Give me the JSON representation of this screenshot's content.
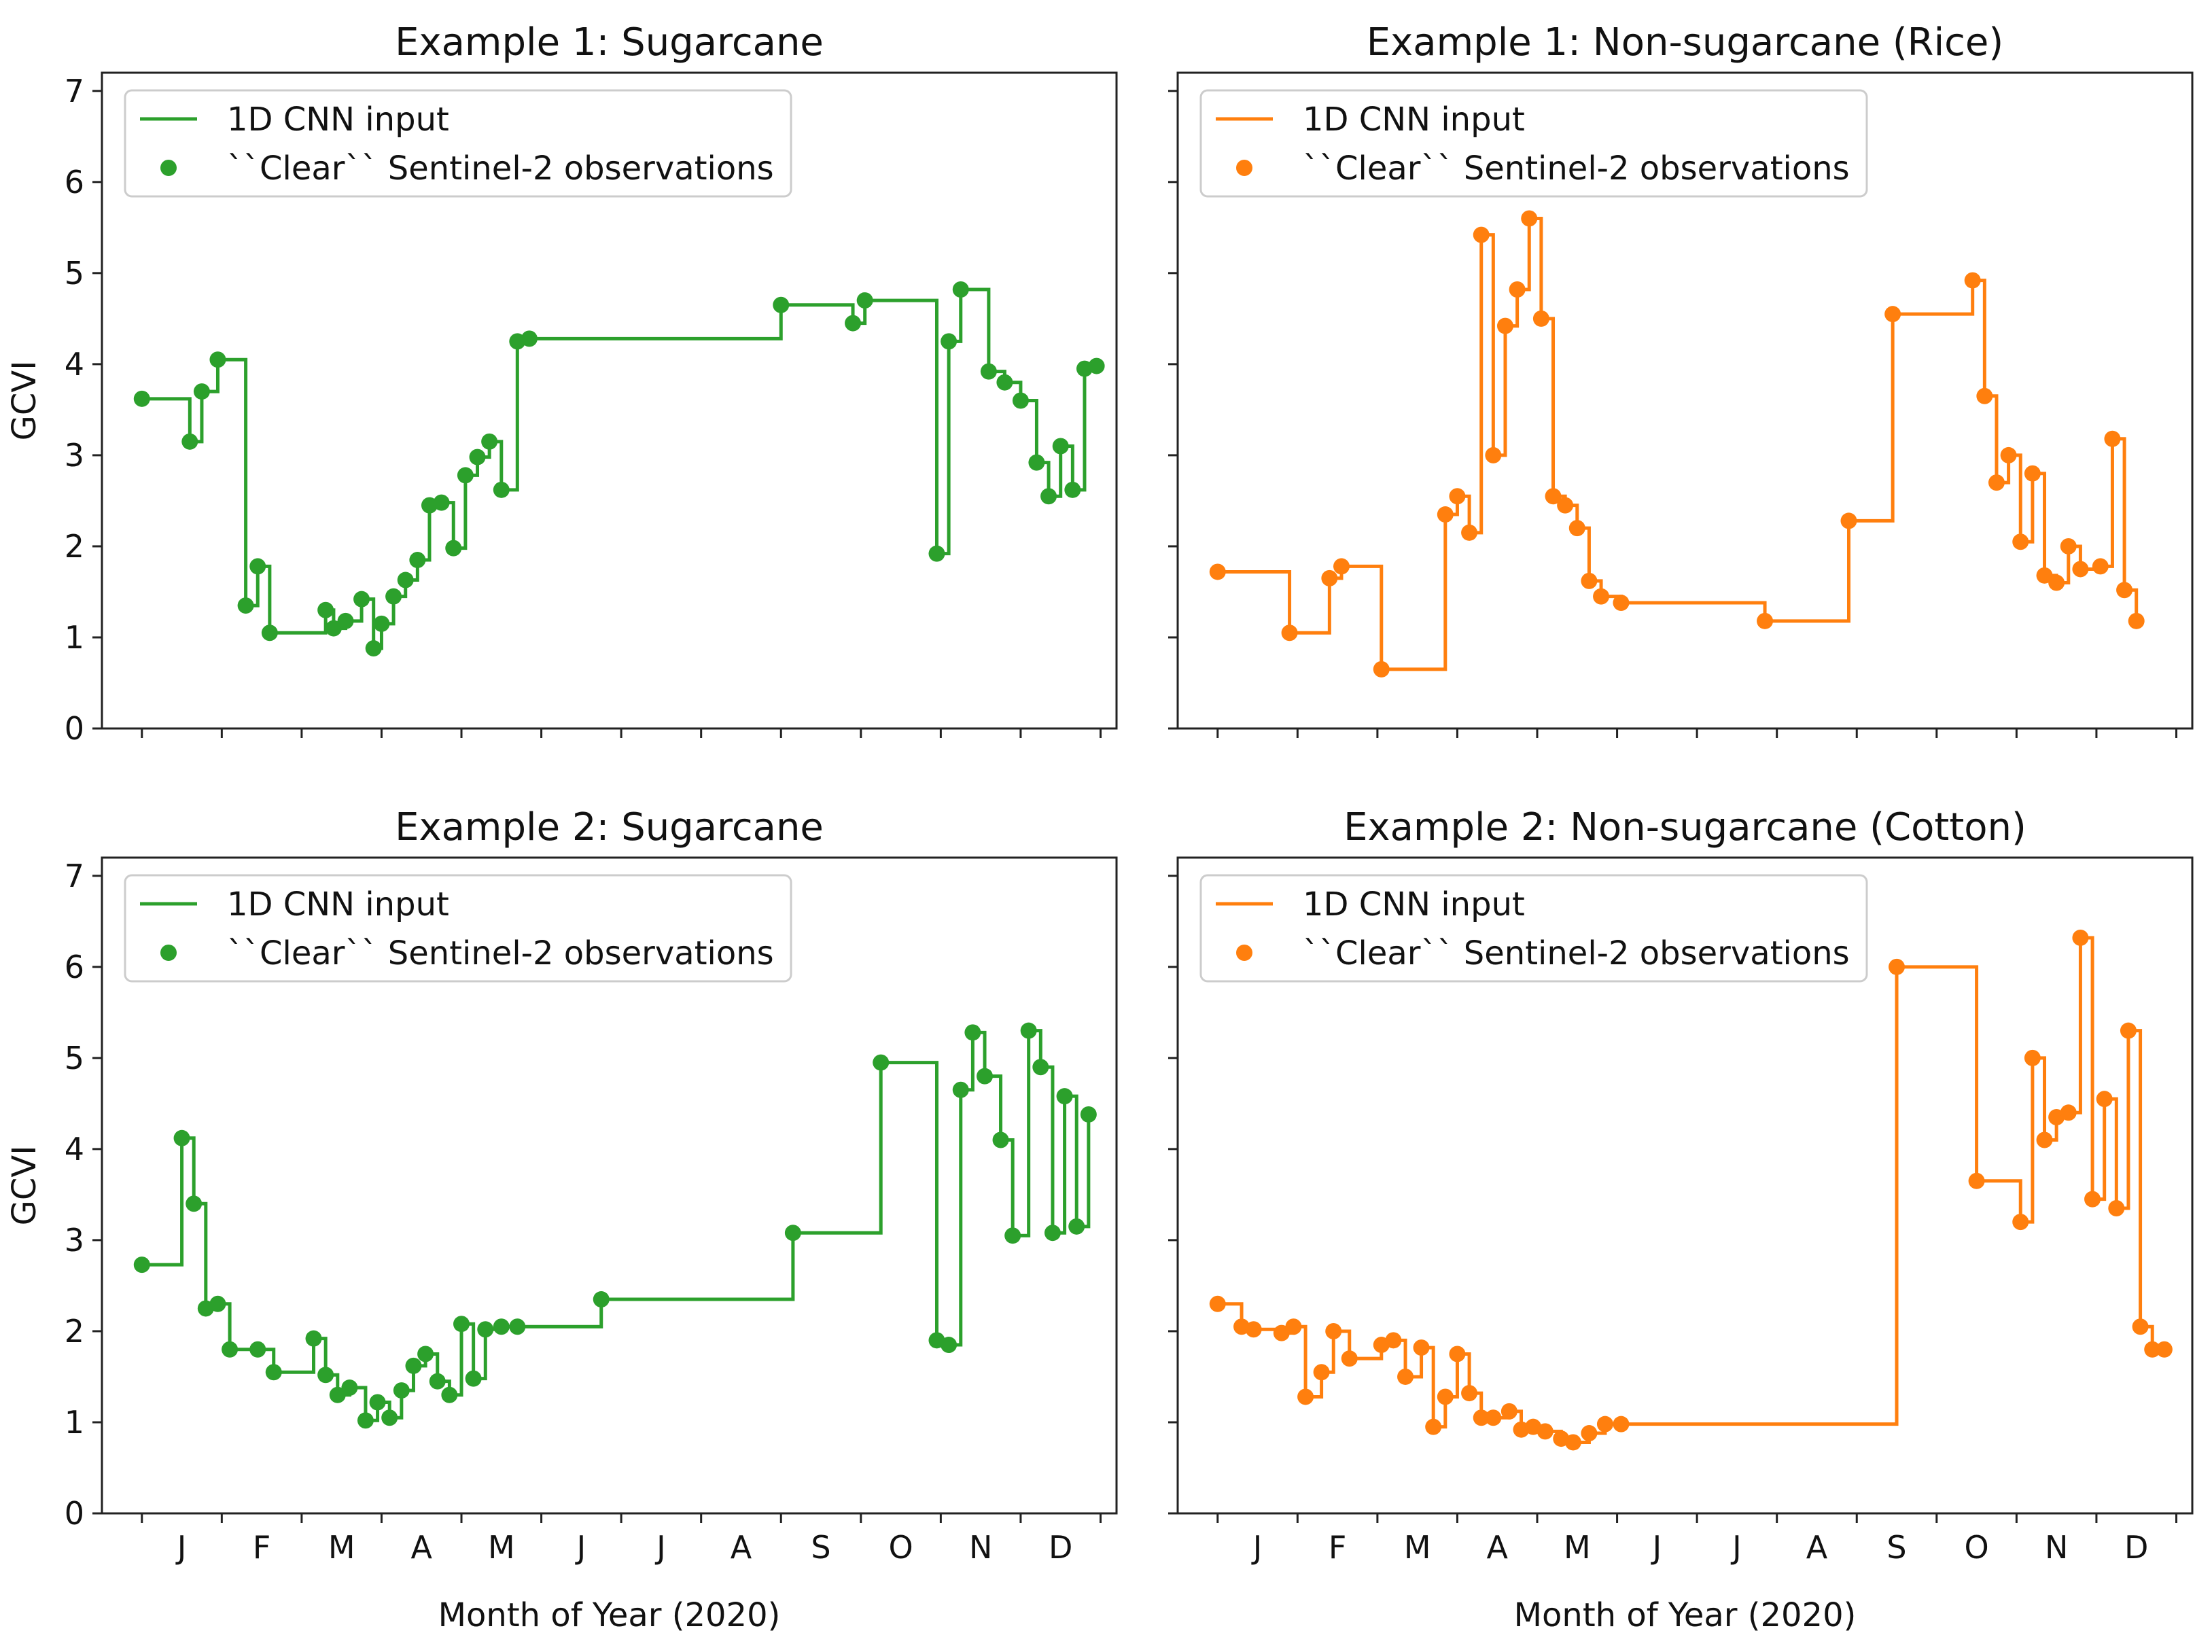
{
  "colors": {
    "sugarcane": "#2ca02c",
    "non_sugarcane": "#ff7f0e"
  },
  "chart_data": [
    {
      "type": "line",
      "step": true,
      "title": "Example 1: Sugarcane",
      "xlabel": "",
      "ylabel": "GCVI",
      "ylim": [
        0,
        7.2
      ],
      "yticks": [
        0,
        1,
        2,
        3,
        4,
        5,
        6,
        7
      ],
      "xlim": [
        -0.5,
        12.2
      ],
      "month_ticks": [
        "J",
        "F",
        "M",
        "A",
        "M",
        "J",
        "J",
        "A",
        "S",
        "O",
        "N",
        "D"
      ],
      "show_month_labels": false,
      "legend": {
        "position": "top-left",
        "line_label": "1D CNN input",
        "marker_label": "``Clear`` Sentinel-2 observations"
      },
      "color": "#2ca02c",
      "series": [
        {
          "name": "``Clear`` Sentinel-2 observations",
          "x": [
            0.0,
            0.6,
            0.75,
            0.95,
            1.3,
            1.45,
            1.6,
            2.3,
            2.4,
            2.55,
            2.75,
            2.9,
            3.0,
            3.15,
            3.3,
            3.45,
            3.6,
            3.75,
            3.9,
            4.05,
            4.2,
            4.35,
            4.5,
            4.7,
            4.85,
            8.0,
            8.9,
            9.05,
            9.95,
            10.1,
            10.25,
            10.6,
            10.8,
            11.0,
            11.2,
            11.35,
            11.5,
            11.65,
            11.8,
            11.95
          ],
          "y": [
            3.62,
            3.15,
            3.7,
            4.05,
            1.35,
            1.78,
            1.05,
            1.3,
            1.1,
            1.18,
            1.42,
            0.88,
            1.15,
            1.45,
            1.63,
            1.85,
            2.45,
            2.48,
            1.98,
            2.78,
            2.98,
            3.15,
            2.62,
            4.25,
            4.28,
            4.65,
            4.45,
            4.7,
            1.92,
            4.25,
            4.82,
            3.92,
            3.8,
            3.6,
            2.92,
            2.55,
            3.1,
            2.62,
            3.95,
            3.98
          ]
        }
      ]
    },
    {
      "type": "line",
      "step": true,
      "title": "Example 1: Non-sugarcane (Rice)",
      "xlabel": "",
      "ylabel": "",
      "ylim": [
        0,
        7.2
      ],
      "yticks": [
        0,
        1,
        2,
        3,
        4,
        5,
        6,
        7
      ],
      "xlim": [
        -0.5,
        12.2
      ],
      "month_ticks": [
        "J",
        "F",
        "M",
        "A",
        "M",
        "J",
        "J",
        "A",
        "S",
        "O",
        "N",
        "D"
      ],
      "show_month_labels": false,
      "legend": {
        "position": "top-left",
        "line_label": "1D CNN input",
        "marker_label": "``Clear`` Sentinel-2 observations"
      },
      "color": "#ff7f0e",
      "series": [
        {
          "name": "``Clear`` Sentinel-2 observations",
          "x": [
            0.0,
            0.9,
            1.4,
            1.55,
            2.05,
            2.85,
            3.0,
            3.15,
            3.3,
            3.45,
            3.6,
            3.75,
            3.9,
            4.05,
            4.2,
            4.35,
            4.5,
            4.65,
            4.8,
            5.05,
            6.85,
            7.9,
            8.45,
            9.45,
            9.6,
            9.75,
            9.9,
            10.05,
            10.2,
            10.35,
            10.5,
            10.65,
            10.8,
            11.05,
            11.2,
            11.35,
            11.5
          ],
          "y": [
            1.72,
            1.05,
            1.65,
            1.78,
            0.65,
            2.35,
            2.55,
            2.15,
            5.42,
            3.0,
            4.42,
            4.82,
            5.6,
            4.5,
            2.55,
            2.45,
            2.2,
            1.62,
            1.45,
            1.38,
            1.18,
            2.28,
            4.55,
            4.92,
            3.65,
            2.7,
            3.0,
            2.05,
            2.8,
            1.68,
            1.6,
            2.0,
            1.75,
            1.78,
            3.18,
            1.52,
            1.18
          ]
        }
      ]
    },
    {
      "type": "line",
      "step": true,
      "title": "Example 2: Sugarcane",
      "xlabel": "Month of Year (2020)",
      "ylabel": "GCVI",
      "ylim": [
        0,
        7.2
      ],
      "yticks": [
        0,
        1,
        2,
        3,
        4,
        5,
        6,
        7
      ],
      "xlim": [
        -0.5,
        12.2
      ],
      "month_ticks": [
        "J",
        "F",
        "M",
        "A",
        "M",
        "J",
        "J",
        "A",
        "S",
        "O",
        "N",
        "D"
      ],
      "show_month_labels": true,
      "legend": {
        "position": "top-left",
        "line_label": "1D CNN input",
        "marker_label": "``Clear`` Sentinel-2 observations"
      },
      "color": "#2ca02c",
      "series": [
        {
          "name": "``Clear`` Sentinel-2 observations",
          "x": [
            0.0,
            0.5,
            0.65,
            0.8,
            0.95,
            1.1,
            1.45,
            1.65,
            2.15,
            2.3,
            2.45,
            2.6,
            2.8,
            2.95,
            3.1,
            3.25,
            3.4,
            3.55,
            3.7,
            3.85,
            4.0,
            4.15,
            4.3,
            4.5,
            4.7,
            5.75,
            8.15,
            9.25,
            9.95,
            10.1,
            10.25,
            10.4,
            10.55,
            10.75,
            10.9,
            11.1,
            11.25,
            11.4,
            11.55,
            11.7,
            11.85
          ],
          "y": [
            2.73,
            4.12,
            3.4,
            2.25,
            2.3,
            1.8,
            1.8,
            1.55,
            1.92,
            1.52,
            1.3,
            1.38,
            1.02,
            1.22,
            1.05,
            1.35,
            1.62,
            1.75,
            1.45,
            1.3,
            2.08,
            1.48,
            2.02,
            2.05,
            2.05,
            2.35,
            3.08,
            4.95,
            1.9,
            1.85,
            4.65,
            5.28,
            4.8,
            4.1,
            3.05,
            5.3,
            4.9,
            3.08,
            4.58,
            3.15,
            4.38
          ]
        }
      ]
    },
    {
      "type": "line",
      "step": true,
      "title": "Example 2: Non-sugarcane (Cotton)",
      "xlabel": "Month of Year (2020)",
      "ylabel": "",
      "ylim": [
        0,
        7.2
      ],
      "yticks": [
        0,
        1,
        2,
        3,
        4,
        5,
        6,
        7
      ],
      "xlim": [
        -0.5,
        12.2
      ],
      "month_ticks": [
        "J",
        "F",
        "M",
        "A",
        "M",
        "J",
        "J",
        "A",
        "S",
        "O",
        "N",
        "D"
      ],
      "show_month_labels": true,
      "legend": {
        "position": "top-left",
        "line_label": "1D CNN input",
        "marker_label": "``Clear`` Sentinel-2 observations"
      },
      "color": "#ff7f0e",
      "series": [
        {
          "name": "``Clear`` Sentinel-2 observations",
          "x": [
            0.0,
            0.3,
            0.45,
            0.8,
            0.95,
            1.1,
            1.3,
            1.45,
            1.65,
            2.05,
            2.2,
            2.35,
            2.55,
            2.7,
            2.85,
            3.0,
            3.15,
            3.3,
            3.45,
            3.65,
            3.8,
            3.95,
            4.1,
            4.3,
            4.45,
            4.65,
            4.85,
            5.05,
            8.5,
            9.5,
            10.05,
            10.2,
            10.35,
            10.5,
            10.65,
            10.8,
            10.95,
            11.1,
            11.25,
            11.4,
            11.55,
            11.7,
            11.85
          ],
          "y": [
            2.3,
            2.05,
            2.02,
            1.98,
            2.05,
            1.28,
            1.55,
            2.0,
            1.7,
            1.85,
            1.9,
            1.5,
            1.82,
            0.95,
            1.28,
            1.75,
            1.32,
            1.05,
            1.05,
            1.12,
            0.92,
            0.95,
            0.9,
            0.82,
            0.78,
            0.88,
            0.98,
            0.98,
            6.0,
            3.65,
            3.2,
            5.0,
            4.1,
            4.35,
            4.4,
            6.32,
            3.45,
            4.55,
            3.35,
            5.3,
            2.05,
            1.8,
            1.8
          ]
        }
      ]
    }
  ]
}
